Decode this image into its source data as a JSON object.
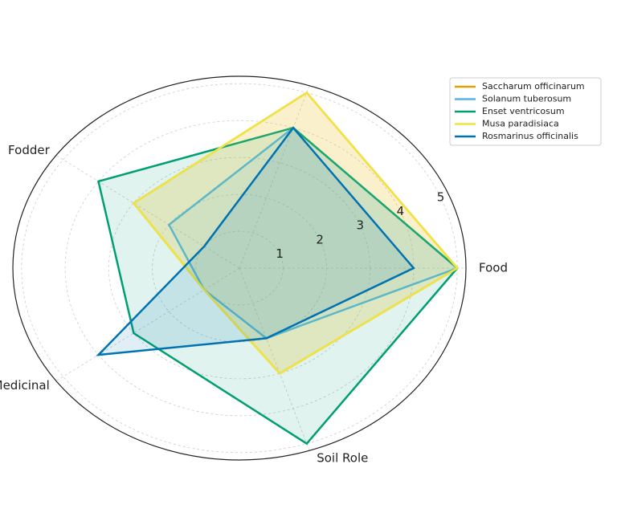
{
  "chart_data": {
    "type": "radar",
    "categories": [
      "Food",
      null,
      "Fodder",
      "Medicinal",
      "Soil Role"
    ],
    "ylim": [
      0,
      5.2
    ],
    "yticks": [
      1,
      2,
      3,
      4,
      5
    ],
    "grid": true,
    "legend": "upper right",
    "series": [
      {
        "name": "Saccharum officinarum",
        "color": "#E69F00",
        "values": [
          5,
          5,
          3,
          1,
          3
        ]
      },
      {
        "name": "Solanum tuberosum",
        "color": "#56B4E9",
        "values": [
          5,
          4,
          2,
          1,
          2
        ]
      },
      {
        "name": "Enset ventricosum",
        "color": "#009E73",
        "values": [
          5,
          4,
          4,
          3,
          5
        ]
      },
      {
        "name": "Musa paradisiaca",
        "color": "#F0E442",
        "values": [
          5,
          5,
          3,
          1,
          3
        ]
      },
      {
        "name": "Rosmarinus officinalis",
        "color": "#0072B2",
        "values": [
          4,
          4,
          1,
          4,
          2
        ]
      }
    ]
  }
}
